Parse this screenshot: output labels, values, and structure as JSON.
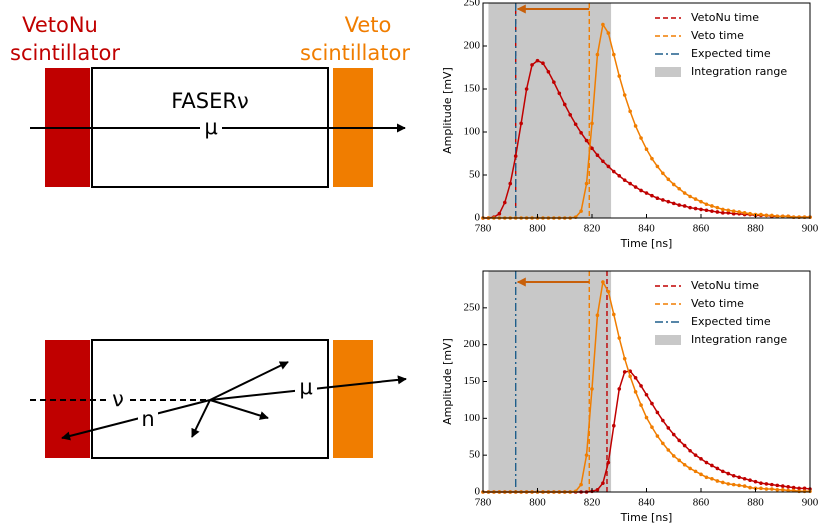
{
  "diagrams": [
    {
      "left_label": [
        "VetoNu",
        "scintillator"
      ],
      "right_label": [
        "Veto",
        "scintillator"
      ],
      "detector": "FASERν",
      "particles": [
        "μ"
      ]
    },
    {
      "particles": [
        "ν",
        "n",
        "μ"
      ]
    }
  ],
  "chart_data": [
    {
      "type": "line",
      "x_label": "Time [ns]",
      "y_label": "Amplitude [mV]",
      "x": [
        780,
        782,
        784,
        786,
        788,
        790,
        792,
        794,
        796,
        798,
        800,
        802,
        804,
        806,
        808,
        810,
        812,
        814,
        816,
        818,
        820,
        822,
        824,
        826,
        828,
        830,
        832,
        834,
        836,
        838,
        840,
        842,
        844,
        846,
        848,
        850,
        852,
        854,
        856,
        858,
        860,
        862,
        864,
        866,
        868,
        870,
        872,
        874,
        876,
        878,
        880,
        882,
        884,
        886,
        888,
        890,
        892,
        894,
        896,
        898,
        900
      ],
      "series": [
        {
          "color": "#c00000",
          "values": [
            0,
            0,
            1,
            5,
            18,
            40,
            72,
            110,
            150,
            178,
            183,
            180,
            170,
            158,
            145,
            132,
            120,
            109,
            99,
            90,
            81,
            73,
            66,
            60,
            54,
            49,
            44,
            40,
            36,
            32,
            29,
            26,
            23,
            21,
            19,
            17,
            15,
            14,
            12,
            11,
            10,
            9,
            8,
            7,
            6,
            6,
            5,
            5,
            4,
            4,
            3,
            3,
            3,
            2,
            2,
            2,
            2,
            1,
            1,
            1,
            1
          ]
        },
        {
          "color": "#f07d00",
          "values": [
            0,
            0,
            0,
            0,
            0,
            0,
            0,
            0,
            0,
            0,
            0,
            0,
            0,
            0,
            0,
            0,
            0,
            1,
            8,
            40,
            110,
            190,
            225,
            215,
            190,
            165,
            143,
            124,
            107,
            93,
            80,
            69,
            60,
            52,
            45,
            39,
            34,
            29,
            25,
            22,
            19,
            16,
            14,
            12,
            10,
            9,
            8,
            7,
            6,
            5,
            4,
            4,
            3,
            3,
            2,
            2,
            2,
            1,
            1,
            1,
            1
          ]
        }
      ],
      "vlines": [
        {
          "name": "VetoNu time",
          "x": 792,
          "color": "#c00000",
          "dash": "5,3"
        },
        {
          "name": "Veto time",
          "x": 819,
          "color": "#f07d00",
          "dash": "5,3"
        },
        {
          "name": "Expected time",
          "x": 792,
          "color": "#1f5f8b",
          "dash": "8,3,2,3"
        }
      ],
      "span": {
        "name": "Integration range",
        "range": [
          782,
          827
        ],
        "color": "#c8c8c8"
      },
      "arrow": {
        "x": [
          819,
          792
        ],
        "y": 243,
        "color": "#c8600a"
      },
      "xlim": [
        780,
        900
      ],
      "xticks": [
        780,
        800,
        820,
        840,
        860,
        880,
        900
      ],
      "ylim": [
        0,
        250
      ],
      "yticks": [
        0,
        50,
        100,
        150,
        200,
        250
      ]
    },
    {
      "type": "line",
      "x_label": "Time [ns]",
      "y_label": "Amplitude [mV]",
      "x": [
        780,
        782,
        784,
        786,
        788,
        790,
        792,
        794,
        796,
        798,
        800,
        802,
        804,
        806,
        808,
        810,
        812,
        814,
        816,
        818,
        820,
        822,
        824,
        826,
        828,
        830,
        832,
        834,
        836,
        838,
        840,
        842,
        844,
        846,
        848,
        850,
        852,
        854,
        856,
        858,
        860,
        862,
        864,
        866,
        868,
        870,
        872,
        874,
        876,
        878,
        880,
        882,
        884,
        886,
        888,
        890,
        892,
        894,
        896,
        898,
        900
      ],
      "series": [
        {
          "color": "#c00000",
          "values": [
            0,
            0,
            0,
            0,
            0,
            0,
            0,
            0,
            0,
            0,
            0,
            0,
            0,
            0,
            0,
            0,
            0,
            0,
            0,
            0,
            1,
            3,
            12,
            40,
            90,
            140,
            163,
            164,
            155,
            144,
            132,
            120,
            108,
            97,
            87,
            78,
            70,
            63,
            56,
            50,
            45,
            40,
            36,
            32,
            28,
            25,
            22,
            20,
            18,
            16,
            14,
            12,
            11,
            10,
            9,
            8,
            7,
            6,
            5,
            5,
            4
          ]
        },
        {
          "color": "#f07d00",
          "values": [
            0,
            0,
            0,
            0,
            0,
            0,
            0,
            0,
            0,
            0,
            0,
            0,
            0,
            0,
            0,
            0,
            0,
            1,
            10,
            50,
            140,
            240,
            285,
            272,
            241,
            209,
            181,
            157,
            136,
            118,
            101,
            88,
            76,
            66,
            57,
            49,
            43,
            37,
            32,
            28,
            24,
            20,
            18,
            15,
            13,
            11,
            10,
            9,
            8,
            6,
            5,
            5,
            4,
            4,
            3,
            3,
            2,
            2,
            1,
            1,
            1
          ]
        }
      ],
      "vlines": [
        {
          "name": "VetoNu time",
          "x": 825.5,
          "color": "#c00000",
          "dash": "5,3"
        },
        {
          "name": "Veto time",
          "x": 819,
          "color": "#f07d00",
          "dash": "5,3"
        },
        {
          "name": "Expected time",
          "x": 792,
          "color": "#1f5f8b",
          "dash": "8,3,2,3"
        }
      ],
      "span": {
        "name": "Integration range",
        "range": [
          782,
          827
        ],
        "color": "#c8c8c8"
      },
      "arrow": {
        "x": [
          819,
          792
        ],
        "y": 285,
        "color": "#c8600a"
      },
      "xlim": [
        780,
        900
      ],
      "xticks": [
        780,
        800,
        820,
        840,
        860,
        880,
        900
      ],
      "ylim": [
        0,
        300
      ],
      "yticks": [
        0,
        50,
        100,
        150,
        200,
        250
      ]
    }
  ]
}
